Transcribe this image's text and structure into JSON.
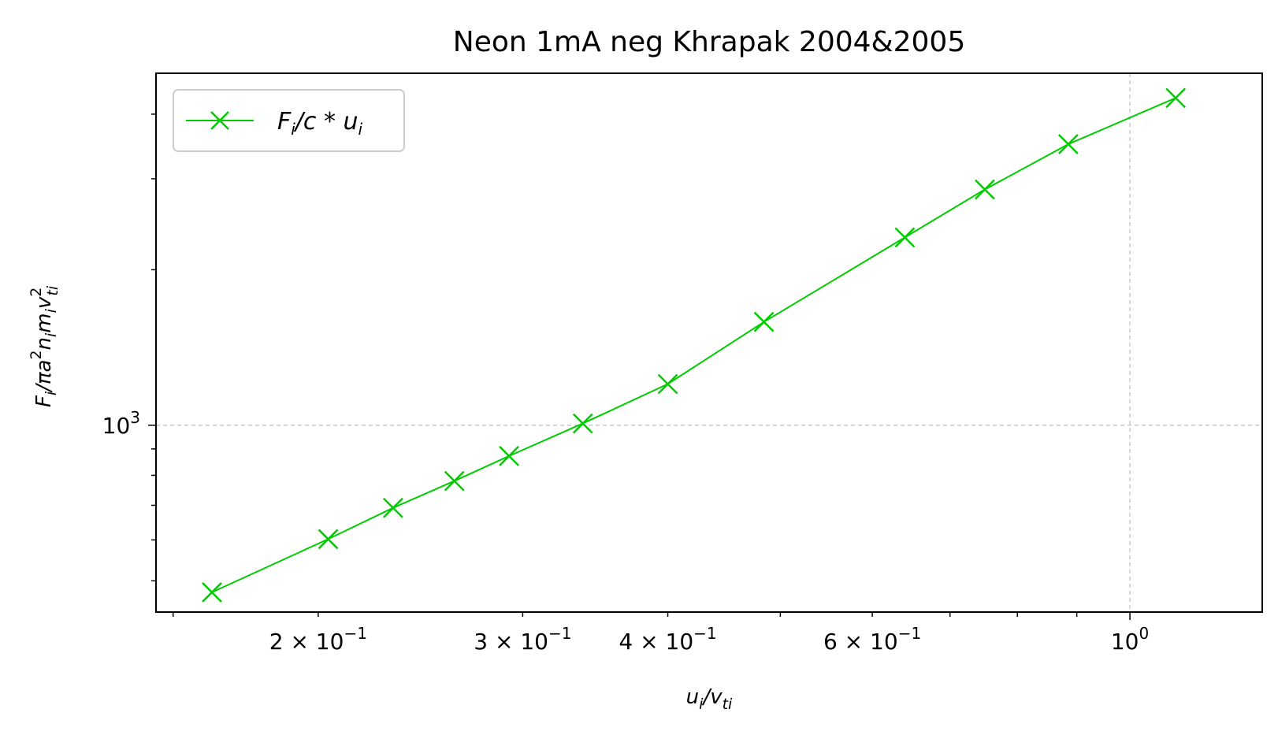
{
  "chart_data": {
    "type": "line",
    "title": "Neon 1mA neg Khrapak 2004&2005",
    "xlabel": "u_i/v_ti",
    "ylabel": "F_i/πa²n_i m_i v_ti²",
    "x_scale": "log",
    "y_scale": "log",
    "xlim": [
      0.145,
      1.3
    ],
    "ylim": [
      435,
      4800
    ],
    "grid": "major, dashed",
    "legend_position": "upper-left",
    "x_ticks": [
      {
        "value": 0.2,
        "mantissa": "2",
        "exponent": "−1"
      },
      {
        "value": 0.3,
        "mantissa": "3",
        "exponent": "−1"
      },
      {
        "value": 0.4,
        "mantissa": "4",
        "exponent": "−1"
      },
      {
        "value": 0.6,
        "mantissa": "6",
        "exponent": "−1"
      },
      {
        "value": 1.0,
        "mantissa": "",
        "exponent": "0"
      }
    ],
    "y_ticks": [
      {
        "value": 1000,
        "base": "10",
        "exponent": "3"
      }
    ],
    "series": [
      {
        "name": "F_i/c*u_i",
        "color": "#00cc00",
        "marker": "x",
        "x": [
          0.162,
          0.204,
          0.232,
          0.262,
          0.292,
          0.338,
          0.4,
          0.484,
          0.64,
          0.75,
          0.885,
          1.095
        ],
        "y": [
          475,
          602,
          692,
          780,
          872,
          1008,
          1202,
          1585,
          2310,
          2860,
          3500,
          4300
        ]
      }
    ]
  }
}
